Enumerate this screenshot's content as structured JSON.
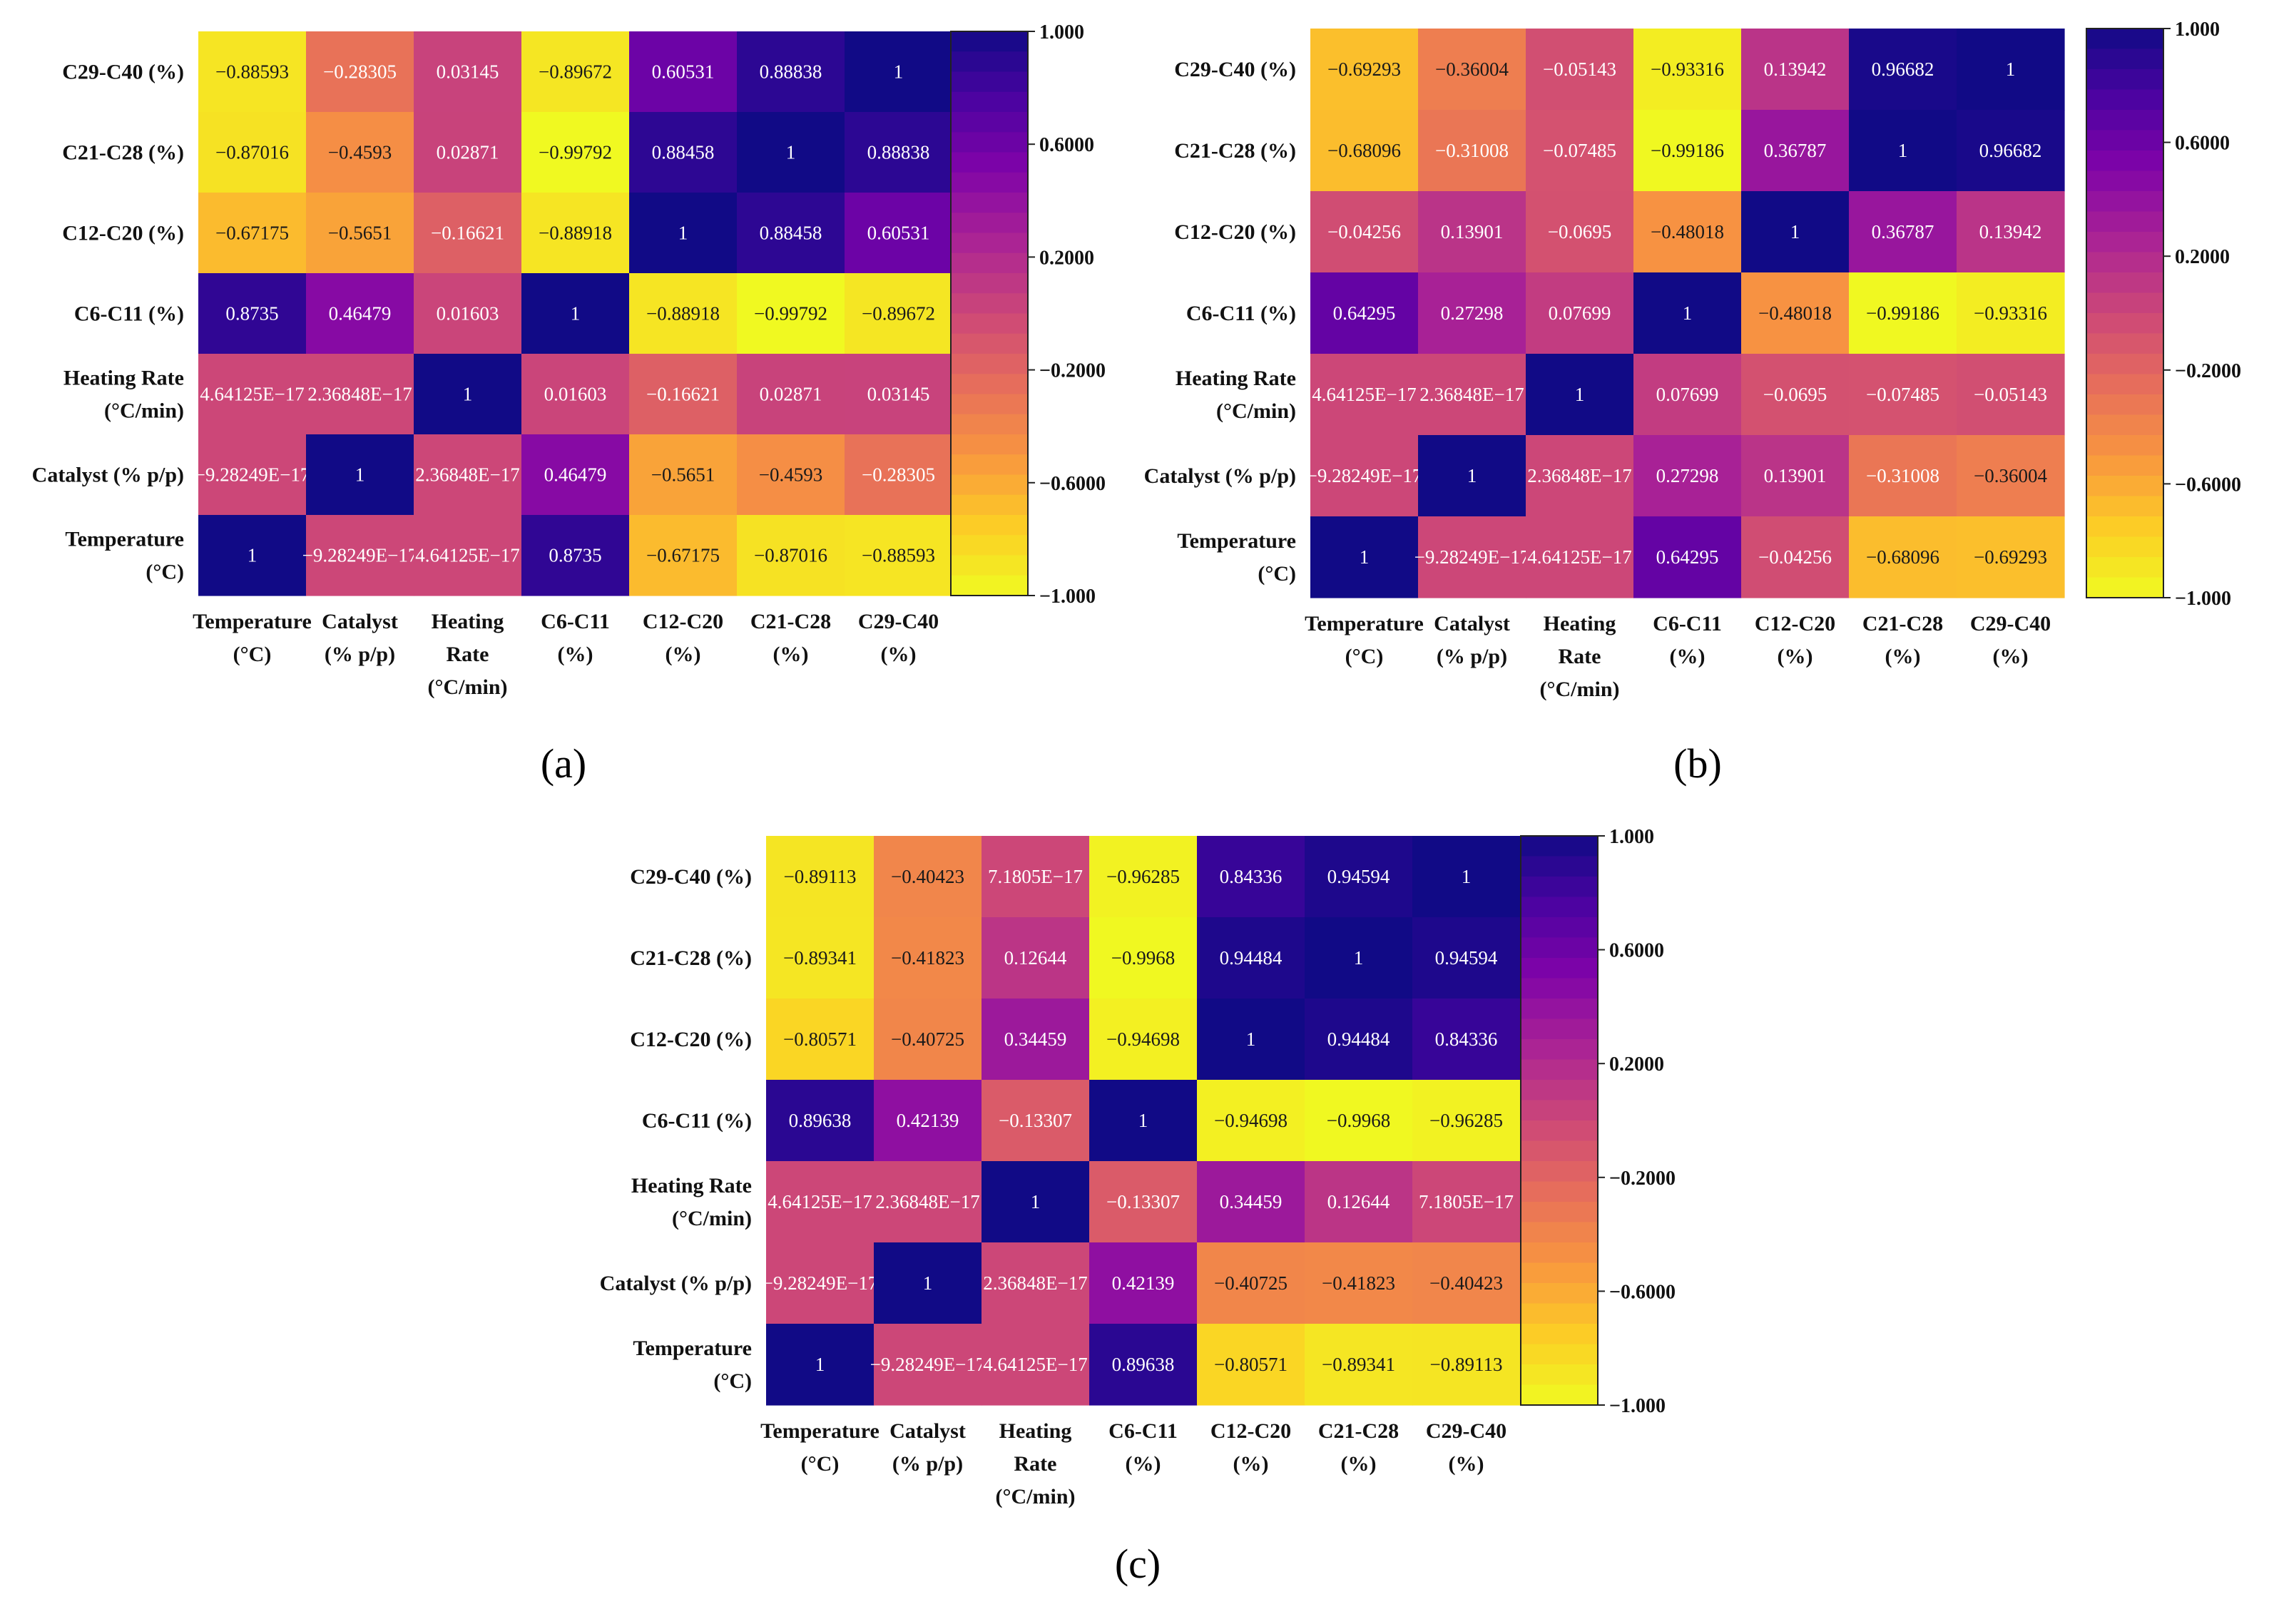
{
  "chart_data": [
    {
      "type": "heatmap",
      "panel_label": "(a)",
      "rows": [
        {
          "label": [
            "C29-C40 (%)"
          ],
          "values": [
            "−0.88593",
            "−0.28305",
            "0.03145",
            "−0.89672",
            "0.60531",
            "0.88838",
            "1"
          ]
        },
        {
          "label": [
            "C21-C28 (%)"
          ],
          "values": [
            "−0.87016",
            "−0.4593",
            "0.02871",
            "−0.99792",
            "0.88458",
            "1",
            "0.88838"
          ]
        },
        {
          "label": [
            "C12-C20 (%)"
          ],
          "values": [
            "−0.67175",
            "−0.5651",
            "−0.16621",
            "−0.88918",
            "1",
            "0.88458",
            "0.60531"
          ]
        },
        {
          "label": [
            "C6-C11 (%)"
          ],
          "values": [
            "0.8735",
            "0.46479",
            "0.01603",
            "1",
            "−0.88918",
            "−0.99792",
            "−0.89672"
          ]
        },
        {
          "label": [
            "Heating Rate",
            "(°C/min)"
          ],
          "values": [
            "4.64125E−17",
            "2.36848E−17",
            "1",
            "0.01603",
            "−0.16621",
            "0.02871",
            "0.03145"
          ]
        },
        {
          "label": [
            "Catalyst (% p/p)"
          ],
          "values": [
            "−9.28249E−17",
            "1",
            "2.36848E−17",
            "0.46479",
            "−0.5651",
            "−0.4593",
            "−0.28305"
          ]
        },
        {
          "label": [
            "Temperature",
            "(°C)"
          ],
          "values": [
            "1",
            "−9.28249E−17",
            "4.64125E−17",
            "0.8735",
            "−0.67175",
            "−0.87016",
            "−0.88593"
          ]
        }
      ],
      "columns": [
        [
          "Temperature",
          "(°C)"
        ],
        [
          "Catalyst",
          "(% p/p)"
        ],
        [
          "Heating",
          "Rate",
          "(°C/min)"
        ],
        [
          "C6-C11",
          "(%)"
        ],
        [
          "C12-C20",
          "(%)"
        ],
        [
          "C21-C28",
          "(%)"
        ],
        [
          "C29-C40",
          "(%)"
        ]
      ],
      "colorbar": {
        "ticks": [
          "1.000",
          "0.6000",
          "0.2000",
          "−0.2000",
          "−0.6000",
          "−1.000"
        ],
        "range": [
          -1,
          1
        ],
        "colormap": "plasma"
      }
    },
    {
      "type": "heatmap",
      "panel_label": "(b)",
      "rows": [
        {
          "label": [
            "C29-C40 (%)"
          ],
          "values": [
            "−0.69293",
            "−0.36004",
            "−0.05143",
            "−0.93316",
            "0.13942",
            "0.96682",
            "1"
          ]
        },
        {
          "label": [
            "C21-C28 (%)"
          ],
          "values": [
            "−0.68096",
            "−0.31008",
            "−0.07485",
            "−0.99186",
            "0.36787",
            "1",
            "0.96682"
          ]
        },
        {
          "label": [
            "C12-C20 (%)"
          ],
          "values": [
            "−0.04256",
            "0.13901",
            "−0.0695",
            "−0.48018",
            "1",
            "0.36787",
            "0.13942"
          ]
        },
        {
          "label": [
            "C6-C11 (%)"
          ],
          "values": [
            "0.64295",
            "0.27298",
            "0.07699",
            "1",
            "−0.48018",
            "−0.99186",
            "−0.93316"
          ]
        },
        {
          "label": [
            "Heating Rate",
            "(°C/min)"
          ],
          "values": [
            "4.64125E−17",
            "2.36848E−17",
            "1",
            "0.07699",
            "−0.0695",
            "−0.07485",
            "−0.05143"
          ]
        },
        {
          "label": [
            "Catalyst (% p/p)"
          ],
          "values": [
            "−9.28249E−17",
            "1",
            "2.36848E−17",
            "0.27298",
            "0.13901",
            "−0.31008",
            "−0.36004"
          ]
        },
        {
          "label": [
            "Temperature",
            "(°C)"
          ],
          "values": [
            "1",
            "−9.28249E−17",
            "4.64125E−17",
            "0.64295",
            "−0.04256",
            "−0.68096",
            "−0.69293"
          ]
        }
      ],
      "columns": [
        [
          "Temperature",
          "(°C)"
        ],
        [
          "Catalyst",
          "(% p/p)"
        ],
        [
          "Heating",
          "Rate",
          "(°C/min)"
        ],
        [
          "C6-C11",
          "(%)"
        ],
        [
          "C12-C20",
          "(%)"
        ],
        [
          "C21-C28",
          "(%)"
        ],
        [
          "C29-C40",
          "(%)"
        ]
      ],
      "colorbar": {
        "ticks": [
          "1.000",
          "0.6000",
          "0.2000",
          "−0.2000",
          "−0.6000",
          "−1.000"
        ],
        "range": [
          -1,
          1
        ],
        "colormap": "plasma"
      }
    },
    {
      "type": "heatmap",
      "panel_label": "(c)",
      "rows": [
        {
          "label": [
            "C29-C40 (%)"
          ],
          "values": [
            "−0.89113",
            "−0.40423",
            "7.1805E−17",
            "−0.96285",
            "0.84336",
            "0.94594",
            "1"
          ]
        },
        {
          "label": [
            "C21-C28 (%)"
          ],
          "values": [
            "−0.89341",
            "−0.41823",
            "0.12644",
            "−0.9968",
            "0.94484",
            "1",
            "0.94594"
          ]
        },
        {
          "label": [
            "C12-C20 (%)"
          ],
          "values": [
            "−0.80571",
            "−0.40725",
            "0.34459",
            "−0.94698",
            "1",
            "0.94484",
            "0.84336"
          ]
        },
        {
          "label": [
            "C6-C11 (%)"
          ],
          "values": [
            "0.89638",
            "0.42139",
            "−0.13307",
            "1",
            "−0.94698",
            "−0.9968",
            "−0.96285"
          ]
        },
        {
          "label": [
            "Heating Rate",
            "(°C/min)"
          ],
          "values": [
            "4.64125E−17",
            "2.36848E−17",
            "1",
            "−0.13307",
            "0.34459",
            "0.12644",
            "7.1805E−17"
          ]
        },
        {
          "label": [
            "Catalyst (% p/p)"
          ],
          "values": [
            "−9.28249E−17",
            "1",
            "2.36848E−17",
            "0.42139",
            "−0.40725",
            "−0.41823",
            "−0.40423"
          ]
        },
        {
          "label": [
            "Temperature",
            "(°C)"
          ],
          "values": [
            "1",
            "−9.28249E−17",
            "4.64125E−17",
            "0.89638",
            "−0.80571",
            "−0.89341",
            "−0.89113"
          ]
        }
      ],
      "columns": [
        [
          "Temperature",
          "(°C)"
        ],
        [
          "Catalyst",
          "(% p/p)"
        ],
        [
          "Heating",
          "Rate",
          "(°C/min)"
        ],
        [
          "C6-C11",
          "(%)"
        ],
        [
          "C12-C20",
          "(%)"
        ],
        [
          "C21-C28",
          "(%)"
        ],
        [
          "C29-C40",
          "(%)"
        ]
      ],
      "colorbar": {
        "ticks": [
          "1.000",
          "0.6000",
          "0.2000",
          "−0.2000",
          "−0.6000",
          "−1.000"
        ],
        "range": [
          -1,
          1
        ],
        "colormap": "plasma"
      }
    }
  ]
}
